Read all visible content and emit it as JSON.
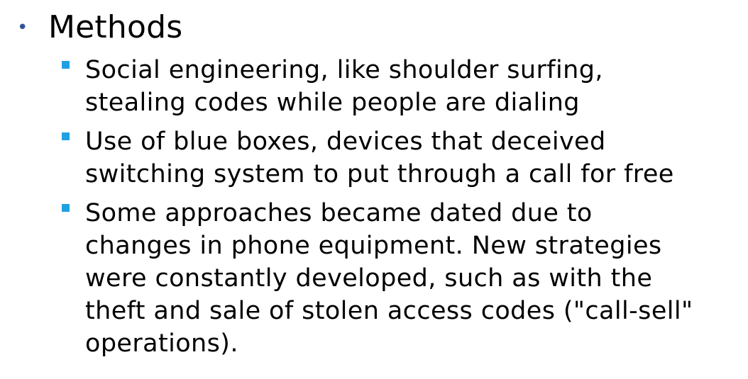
{
  "slide": {
    "heading": "Methods",
    "items": [
      {
        "lines": [
          "Social engineering, like shoulder surfing,",
          "stealing codes while people are dialing"
        ]
      },
      {
        "lines": [
          "Use of blue boxes, devices that deceived",
          "switching system to put through a call for free"
        ]
      },
      {
        "lines": [
          "Some approaches became dated due to",
          "changes in phone equipment. New strategies",
          "were constantly developed, such as with the",
          "theft and sale of stolen access codes (\"call-sell\"",
          "operations)."
        ]
      }
    ]
  },
  "colors": {
    "level1_bullet": "#2f5597",
    "level2_bullet": "#1fa0e0",
    "text": "#000000",
    "background": "#ffffff"
  }
}
